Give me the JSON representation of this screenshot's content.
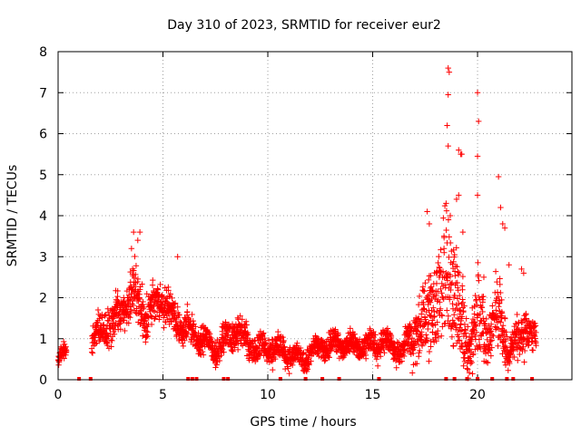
{
  "chart_data": {
    "type": "scatter",
    "title": "Day 310 of 2023, SRMTID for receiver eur2",
    "xlabel": "GPS time / hours",
    "ylabel": "SRMTID / TECUs",
    "xlim": [
      0,
      24.5
    ],
    "ylim": [
      0,
      8
    ],
    "x_ticks": [
      "0",
      "5",
      "10",
      "15",
      "20"
    ],
    "y_ticks": [
      "0",
      "1",
      "2",
      "3",
      "4",
      "5",
      "6",
      "7",
      "8"
    ],
    "grid": true,
    "marker": "plus",
    "color": "#ff0000",
    "series": [
      {
        "name": "SRMTID",
        "envelope": [
          {
            "x": 0.0,
            "base": 0.45,
            "spread": 0.2
          },
          {
            "x": 0.3,
            "base": 0.6,
            "spread": 0.3
          },
          {
            "x": 1.7,
            "base": 1.0,
            "spread": 0.4
          },
          {
            "x": 2.3,
            "base": 1.3,
            "spread": 0.6
          },
          {
            "x": 3.0,
            "base": 1.6,
            "spread": 0.7
          },
          {
            "x": 3.6,
            "base": 2.1,
            "spread": 1.0
          },
          {
            "x": 4.2,
            "base": 1.5,
            "spread": 0.8
          },
          {
            "x": 4.8,
            "base": 2.0,
            "spread": 0.6
          },
          {
            "x": 5.5,
            "base": 1.5,
            "spread": 0.6
          },
          {
            "x": 6.5,
            "base": 1.1,
            "spread": 0.5
          },
          {
            "x": 7.5,
            "base": 0.7,
            "spread": 0.4
          },
          {
            "x": 8.5,
            "base": 1.2,
            "spread": 0.5
          },
          {
            "x": 9.5,
            "base": 0.7,
            "spread": 0.4
          },
          {
            "x": 10.5,
            "base": 0.8,
            "spread": 0.5
          },
          {
            "x": 11.5,
            "base": 0.5,
            "spread": 0.3
          },
          {
            "x": 12.5,
            "base": 0.8,
            "spread": 0.4
          },
          {
            "x": 13.5,
            "base": 0.9,
            "spread": 0.4
          },
          {
            "x": 14.5,
            "base": 0.8,
            "spread": 0.4
          },
          {
            "x": 15.5,
            "base": 0.9,
            "spread": 0.4
          },
          {
            "x": 16.5,
            "base": 0.7,
            "spread": 0.4
          },
          {
            "x": 17.5,
            "base": 1.5,
            "spread": 1.2
          },
          {
            "x": 18.5,
            "base": 2.5,
            "spread": 2.0
          },
          {
            "x": 19.0,
            "base": 2.0,
            "spread": 2.0
          },
          {
            "x": 19.5,
            "base": 0.8,
            "spread": 0.8
          },
          {
            "x": 20.0,
            "base": 1.5,
            "spread": 1.5
          },
          {
            "x": 20.5,
            "base": 1.0,
            "spread": 0.8
          },
          {
            "x": 21.0,
            "base": 1.8,
            "spread": 1.2
          },
          {
            "x": 21.5,
            "base": 0.5,
            "spread": 0.5
          },
          {
            "x": 22.0,
            "base": 1.2,
            "spread": 0.8
          },
          {
            "x": 22.8,
            "base": 1.0,
            "spread": 0.5
          }
        ],
        "data_gaps": [
          [
            0.4,
            1.6
          ]
        ],
        "peaks": [
          [
            18.6,
            7.6
          ],
          [
            18.65,
            7.5
          ],
          [
            18.6,
            6.95
          ],
          [
            18.55,
            6.2
          ],
          [
            18.6,
            5.7
          ],
          [
            19.2,
            5.5
          ],
          [
            19.25,
            5.5
          ],
          [
            19.1,
            5.6
          ],
          [
            19.0,
            4.4
          ],
          [
            19.1,
            4.5
          ],
          [
            18.7,
            4.0
          ],
          [
            18.5,
            4.3
          ],
          [
            20.0,
            7.0
          ],
          [
            20.05,
            6.3
          ],
          [
            20.0,
            5.45
          ],
          [
            20.0,
            4.5
          ],
          [
            21.0,
            4.95
          ],
          [
            21.1,
            4.2
          ],
          [
            21.2,
            3.8
          ],
          [
            21.3,
            3.7
          ],
          [
            3.6,
            3.6
          ],
          [
            3.9,
            3.6
          ],
          [
            3.8,
            3.4
          ],
          [
            3.5,
            3.2
          ],
          [
            5.7,
            3.0
          ],
          [
            18.4,
            3.5
          ],
          [
            17.7,
            3.8
          ],
          [
            17.6,
            4.1
          ],
          [
            19.3,
            3.6
          ],
          [
            20.3,
            2.5
          ],
          [
            21.5,
            2.8
          ],
          [
            22.1,
            2.7
          ],
          [
            22.2,
            2.6
          ]
        ],
        "zero_markers": [
          1.0,
          1.55,
          6.2,
          6.4,
          6.6,
          7.9,
          8.1,
          10.6,
          11.8,
          12.6,
          13.4,
          15.3,
          18.5,
          18.9,
          19.5,
          20.0,
          20.7,
          21.4,
          21.7,
          22.6
        ]
      }
    ]
  }
}
